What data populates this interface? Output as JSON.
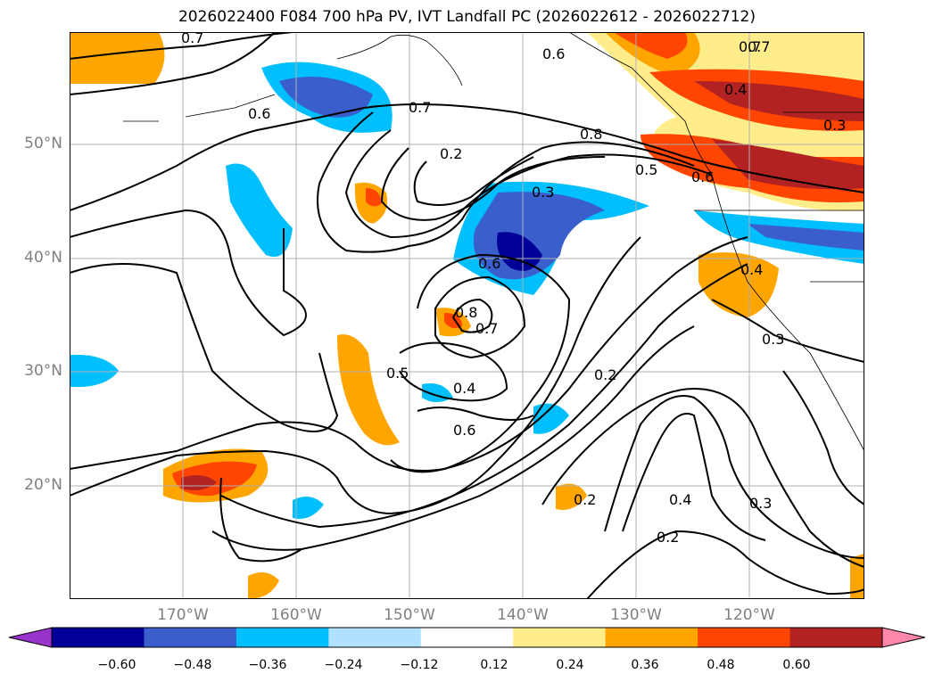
{
  "title": "2026022400 F084 700 hPa PV, IVT Landfall PC (2026022612 - 2026022712)",
  "map": {
    "lat_labels": [
      "50°N",
      "40°N",
      "30°N",
      "20°N"
    ],
    "lon_labels": [
      "170°W",
      "160°W",
      "150°W",
      "140°W",
      "130°W",
      "120°W"
    ],
    "contour_labels": [
      "0.7",
      "0.6",
      "0.6",
      "0.7",
      "0.7",
      "0.8",
      "0.2",
      "0.3",
      "0.6",
      "0.8",
      "0.7",
      "0.5",
      "0.4",
      "0.6",
      "0.2",
      "0.4",
      "0.2",
      "0.2",
      "0.3",
      "0.3",
      "0.4",
      "0.5",
      "0.6",
      "0.7",
      "0.4",
      "0.3"
    ]
  },
  "colorbar": {
    "ticks": [
      "−0.60",
      "−0.48",
      "−0.36",
      "−0.24",
      "−0.12",
      "0.12",
      "0.24",
      "0.36",
      "0.48",
      "0.60"
    ],
    "colors": [
      "#9933cc",
      "#000099",
      "#3a5fcd",
      "#00bfff",
      "#b0e2ff",
      "#ffffff",
      "#ffec8b",
      "#ffa500",
      "#ff4500",
      "#b22222",
      "#ff88aa"
    ]
  }
}
